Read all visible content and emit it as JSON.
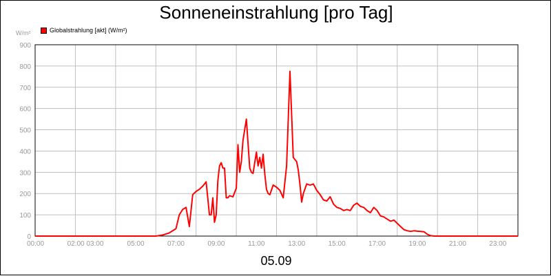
{
  "chart_data": {
    "type": "line",
    "title": "Sonneneinstrahlung [pro Tag]",
    "ylabel": "W/m²",
    "xlabel": "05.09",
    "ylim": [
      0,
      900
    ],
    "xlim_hours": [
      0,
      24
    ],
    "y_ticks": [
      {
        "value": 0,
        "label": "0"
      },
      {
        "value": 100,
        "label": "100"
      },
      {
        "value": 200,
        "label": "200"
      },
      {
        "value": 300,
        "label": "300"
      },
      {
        "value": 400,
        "label": "400"
      },
      {
        "value": 500,
        "label": "500"
      },
      {
        "value": 600,
        "label": "600"
      },
      {
        "value": 700,
        "label": "700"
      },
      {
        "value": 800,
        "label": "800"
      },
      {
        "value": 900,
        "label": "900"
      }
    ],
    "x_ticks": [
      {
        "value": 0,
        "label": "00:00"
      },
      {
        "value": 2.5,
        "label": "02:00 03:00"
      },
      {
        "value": 5,
        "label": "05:00"
      },
      {
        "value": 7,
        "label": "07:00"
      },
      {
        "value": 9,
        "label": "09:00"
      },
      {
        "value": 11,
        "label": "11:00"
      },
      {
        "value": 13,
        "label": "13:00"
      },
      {
        "value": 15,
        "label": "15:00"
      },
      {
        "value": 17,
        "label": "17:00"
      },
      {
        "value": 19,
        "label": "19:00"
      },
      {
        "value": 21,
        "label": "21:00"
      },
      {
        "value": 23,
        "label": "23:00"
      }
    ],
    "grid_hours": [
      2,
      4,
      6,
      8,
      10,
      12,
      14,
      16,
      18,
      20,
      22
    ],
    "grid": true,
    "legend_position": "top-left",
    "series": [
      {
        "name": "Globalstrahlung [akt] (W/m²)",
        "color": "#ff0000",
        "x": [
          "00:00",
          "06:00",
          "06:20",
          "06:40",
          "07:00",
          "07:10",
          "07:20",
          "07:30",
          "07:40",
          "07:50",
          "08:00",
          "08:10",
          "08:20",
          "08:30",
          "08:40",
          "08:45",
          "08:50",
          "08:55",
          "09:00",
          "09:05",
          "09:10",
          "09:15",
          "09:20",
          "09:25",
          "09:30",
          "09:35",
          "09:40",
          "09:50",
          "10:00",
          "10:05",
          "10:10",
          "10:15",
          "10:20",
          "10:30",
          "10:40",
          "10:45",
          "10:50",
          "11:00",
          "11:05",
          "11:10",
          "11:15",
          "11:20",
          "11:25",
          "11:30",
          "11:35",
          "11:40",
          "11:50",
          "12:00",
          "12:10",
          "12:20",
          "12:30",
          "12:40",
          "12:50",
          "13:00",
          "13:05",
          "13:10",
          "13:15",
          "13:20",
          "13:30",
          "13:40",
          "13:50",
          "14:00",
          "14:10",
          "14:20",
          "14:30",
          "14:40",
          "14:50",
          "15:00",
          "15:10",
          "15:20",
          "15:30",
          "15:40",
          "15:50",
          "16:00",
          "16:10",
          "16:20",
          "16:30",
          "16:40",
          "16:50",
          "17:00",
          "17:10",
          "17:20",
          "17:30",
          "17:40",
          "17:50",
          "18:00",
          "18:10",
          "18:20",
          "18:30",
          "18:40",
          "18:50",
          "19:00",
          "19:10",
          "19:20",
          "19:30",
          "19:40",
          "19:50",
          "20:00",
          "20:30",
          "24:00"
        ],
        "values": [
          0,
          0,
          5,
          15,
          35,
          100,
          125,
          135,
          45,
          195,
          210,
          220,
          235,
          255,
          100,
          100,
          180,
          65,
          100,
          260,
          330,
          345,
          320,
          320,
          180,
          180,
          190,
          185,
          225,
          430,
          300,
          350,
          450,
          550,
          320,
          300,
          295,
          395,
          330,
          370,
          320,
          385,
          290,
          220,
          200,
          195,
          240,
          230,
          215,
          180,
          330,
          775,
          370,
          350,
          310,
          240,
          160,
          200,
          245,
          240,
          245,
          215,
          195,
          170,
          165,
          185,
          150,
          135,
          130,
          120,
          125,
          120,
          145,
          155,
          140,
          135,
          120,
          110,
          135,
          120,
          95,
          90,
          80,
          70,
          75,
          60,
          45,
          30,
          25,
          22,
          25,
          23,
          22,
          20,
          8,
          2,
          0,
          0,
          0,
          0
        ]
      }
    ]
  }
}
